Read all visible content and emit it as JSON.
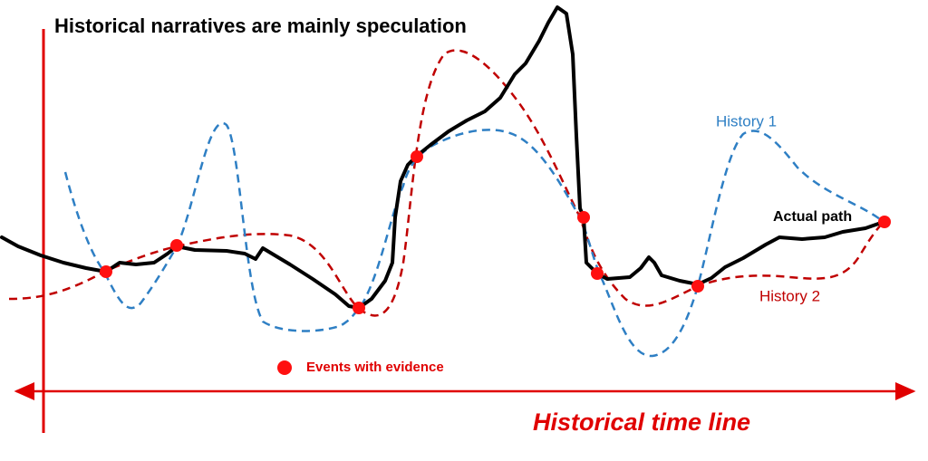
{
  "title": "Historical narratives are mainly speculation",
  "labels": {
    "history_1": "History 1",
    "actual_path": "Actual path",
    "history_2": "History 2"
  },
  "legend": {
    "events": "Events with evidence"
  },
  "axis": {
    "time_line": "Historical time line"
  }
}
